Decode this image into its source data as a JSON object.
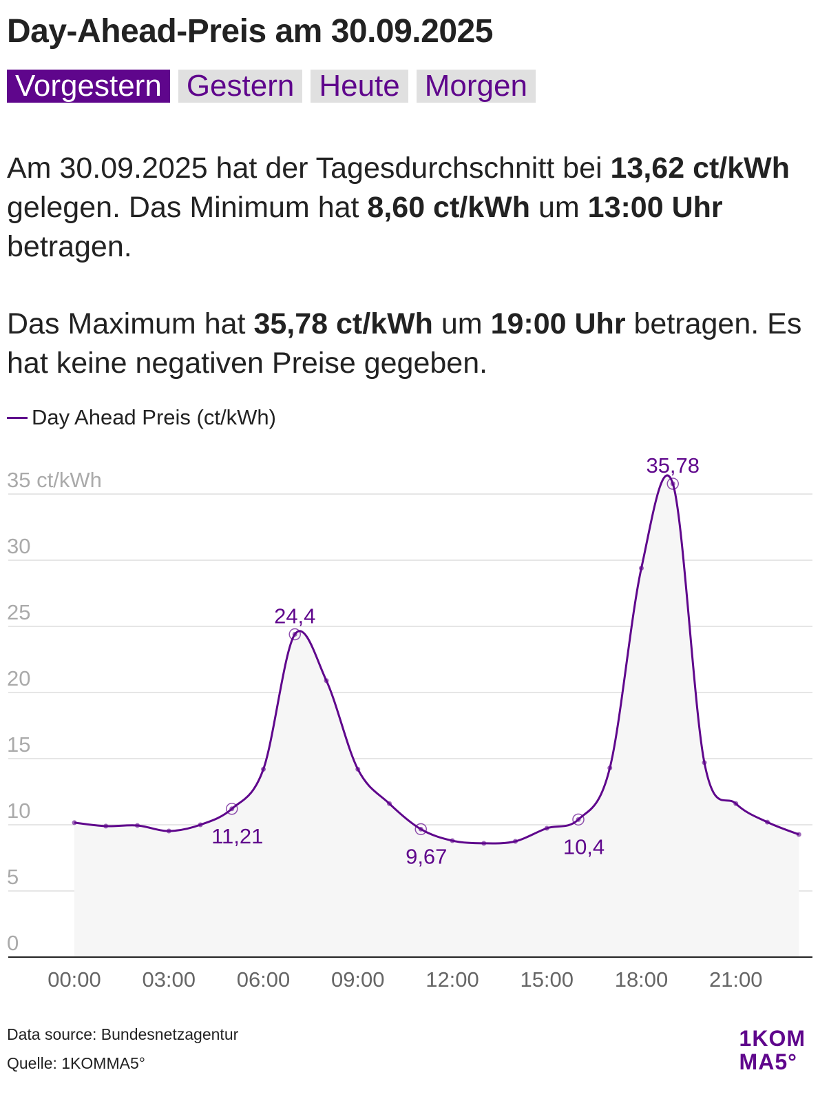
{
  "title": "Day-Ahead-Preis am 30.09.2025",
  "tabs": [
    {
      "label": "Vorgestern",
      "active": true
    },
    {
      "label": "Gestern",
      "active": false
    },
    {
      "label": "Heute",
      "active": false
    },
    {
      "label": "Morgen",
      "active": false
    }
  ],
  "summary": {
    "p1_a": "Am 30.09.2025 hat der Tagesdurchschnitt bei ",
    "p1_avg": "13,62 ct/kWh",
    "p1_b": " gelegen. Das Minimum hat ",
    "p1_min": "8,60 ct/kWh",
    "p1_c": " um ",
    "p1_min_time": "13:00 Uhr",
    "p1_d": " betragen.",
    "p2_a": "Das Maximum hat ",
    "p2_max": "35,78 ct/kWh",
    "p2_b": " um ",
    "p2_max_time": "19:00 Uhr",
    "p2_c": " betragen. Es hat keine negativen Preise gegeben."
  },
  "footer": {
    "source": "Data source: Bundesnetzagentur",
    "quelle": "Quelle: 1KOMMA5°",
    "logo_line1": "1KOM",
    "logo_line2": "MA5°"
  },
  "colors": {
    "accent": "#5f068c",
    "grid": "#dddddd",
    "area": "#f6f6f6"
  },
  "chart_data": {
    "type": "line",
    "legend": "Day Ahead Preis (ct/kWh)",
    "legend_placement": "top-left",
    "x": [
      0,
      1,
      2,
      3,
      4,
      5,
      6,
      7,
      8,
      9,
      10,
      11,
      12,
      13,
      14,
      15,
      16,
      17,
      18,
      19,
      20,
      21,
      22,
      23
    ],
    "values": [
      10.16,
      9.9,
      9.95,
      9.53,
      10.0,
      11.21,
      14.2,
      24.4,
      20.9,
      14.2,
      11.6,
      9.67,
      8.8,
      8.6,
      8.75,
      9.74,
      10.4,
      14.3,
      29.4,
      35.78,
      14.7,
      11.6,
      10.2,
      9.27
    ],
    "annotations": [
      {
        "x": 5,
        "label": "11,21",
        "pos": "below"
      },
      {
        "x": 7,
        "label": "24,4",
        "pos": "above"
      },
      {
        "x": 11,
        "label": "9,67",
        "pos": "below"
      },
      {
        "x": 16,
        "label": "10,4",
        "pos": "below"
      },
      {
        "x": 19,
        "label": "35,78",
        "pos": "above"
      }
    ],
    "yticks": [
      0,
      5,
      10,
      15,
      20,
      25,
      30,
      35
    ],
    "ytick_labels": [
      "0",
      "5",
      "10",
      "15",
      "20",
      "25",
      "30",
      "35 ct/kWh"
    ],
    "xticks": [
      0,
      3,
      6,
      9,
      12,
      15,
      18,
      21
    ],
    "xtick_labels": [
      "00:00",
      "03:00",
      "06:00",
      "09:00",
      "12:00",
      "15:00",
      "18:00",
      "21:00"
    ],
    "ylim": [
      0,
      36
    ],
    "xlim": [
      0,
      23
    ],
    "grid": true
  }
}
